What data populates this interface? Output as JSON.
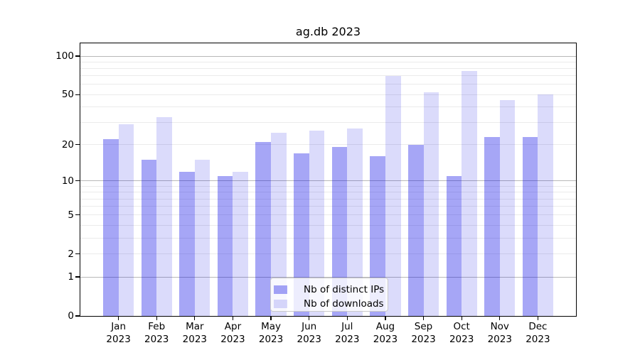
{
  "chart_data": {
    "type": "bar",
    "title": "ag.db 2023",
    "year": "2023",
    "categories": [
      "Jan",
      "Feb",
      "Mar",
      "Apr",
      "May",
      "Jun",
      "Jul",
      "Aug",
      "Sep",
      "Oct",
      "Nov",
      "Dec"
    ],
    "series": [
      {
        "name": "Nb of distinct IPs",
        "color": "rgba(0,0,230,0.35)",
        "values": [
          22,
          15,
          12,
          11,
          21,
          17,
          19,
          16,
          20,
          11,
          23,
          23
        ]
      },
      {
        "name": "Nb of downloads",
        "color": "rgba(0,0,230,0.14)",
        "values": [
          29,
          33,
          15,
          12,
          25,
          26,
          27,
          70,
          52,
          77,
          45,
          50
        ]
      }
    ],
    "yscale": "log1p",
    "ylim": [
      0,
      126
    ],
    "y_tick_values": [
      0,
      1,
      2,
      5,
      10,
      20,
      50,
      100
    ],
    "y_tick_labels": [
      "0",
      "1",
      "2",
      "5",
      "10",
      "20",
      "50",
      "100"
    ],
    "y_major_gridlines": [
      1,
      10,
      100
    ],
    "y_minor_gridlines": [
      2,
      3,
      4,
      5,
      6,
      7,
      8,
      9,
      20,
      30,
      40,
      50,
      60,
      70,
      80,
      90
    ],
    "grid": true,
    "legend_position": "lower center"
  },
  "colors": {
    "grid_major": "#b8b8b8",
    "grid_minor": "#ebebeb",
    "spine": "#000000",
    "text": "#000000",
    "legend_border": "#c9c9c9"
  }
}
